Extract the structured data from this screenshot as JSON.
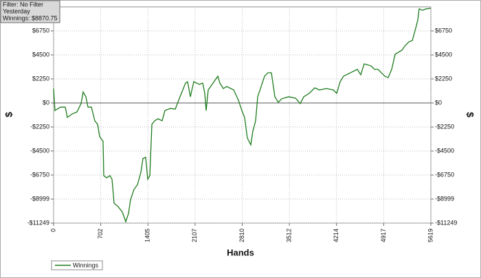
{
  "chart_data": {
    "type": "line",
    "info": [
      "Filter: No Filter",
      "Yesterday",
      "Winnings: $8870.75"
    ],
    "x_label": "Hands",
    "y_label": "$",
    "xlim": [
      0,
      5619
    ],
    "xticks": [
      0,
      702,
      1405,
      2107,
      2810,
      3512,
      4214,
      4917,
      5619
    ],
    "ylim": [
      -11249,
      8999
    ],
    "yticks": [
      {
        "value": -11249,
        "label": "-$11249"
      },
      {
        "value": -8999,
        "label": "-$8999"
      },
      {
        "value": -6750,
        "label": "-$6750"
      },
      {
        "value": -4500,
        "label": "-$4500"
      },
      {
        "value": -2250,
        "label": "-$2250"
      },
      {
        "value": 0,
        "label": "$0"
      },
      {
        "value": 2250,
        "label": "$2250"
      },
      {
        "value": 4500,
        "label": "$4500"
      },
      {
        "value": 6750,
        "label": "$6750"
      }
    ],
    "grid": true,
    "legend": "bottom-left",
    "x": [
      0,
      20,
      102,
      174,
      205,
      276,
      348,
      409,
      440,
      481,
      512,
      563,
      614,
      655,
      686,
      737,
      747,
      788,
      839,
      870,
      901,
      962,
      1024,
      1075,
      1116,
      1146,
      1197,
      1249,
      1300,
      1331,
      1371,
      1402,
      1433,
      1464,
      1505,
      1556,
      1617,
      1658,
      1740,
      1812,
      1883,
      1924,
      1965,
      1996,
      2037,
      2088,
      2170,
      2221,
      2252,
      2272,
      2303,
      2375,
      2446,
      2477,
      2528,
      2579,
      2682,
      2753,
      2804,
      2845,
      2886,
      2937,
      2968,
      3009,
      3040,
      3091,
      3142,
      3193,
      3244,
      3296,
      3347,
      3398,
      3500,
      3603,
      3674,
      3726,
      3807,
      3889,
      3961,
      4063,
      4166,
      4217,
      4268,
      4319,
      4422,
      4524,
      4575,
      4626,
      4729,
      4780,
      4831,
      4933,
      4984,
      5036,
      5087,
      5189,
      5240,
      5292,
      5343,
      5394,
      5425,
      5445,
      5496,
      5547,
      5619
    ],
    "series": [
      {
        "name": "Winnings",
        "color": "#1b7a1b",
        "values": [
          1350,
          -710,
          -390,
          -390,
          -1350,
          -1030,
          -840,
          -60,
          1030,
          580,
          -390,
          -390,
          -1670,
          -1990,
          -3150,
          -3600,
          -6810,
          -7010,
          -6810,
          -7140,
          -9390,
          -9710,
          -10220,
          -11120,
          -10350,
          -9060,
          -8100,
          -7650,
          -6490,
          -5210,
          -5080,
          -7140,
          -6810,
          -1990,
          -1670,
          -1480,
          -1670,
          -710,
          -510,
          -580,
          580,
          1220,
          1860,
          1990,
          580,
          1990,
          1740,
          1860,
          900,
          -710,
          1220,
          1860,
          2510,
          1860,
          1350,
          1540,
          1220,
          260,
          -710,
          -1350,
          -3280,
          -3920,
          -2640,
          -1670,
          580,
          1540,
          2510,
          2830,
          2830,
          580,
          60,
          390,
          580,
          450,
          -60,
          580,
          900,
          1410,
          1220,
          1350,
          1220,
          900,
          1990,
          2510,
          2830,
          3150,
          2640,
          3660,
          3470,
          3150,
          3150,
          2510,
          2380,
          3150,
          4560,
          4950,
          5400,
          5720,
          5850,
          7010,
          7780,
          8810,
          8680,
          8810,
          8871
        ]
      }
    ]
  }
}
